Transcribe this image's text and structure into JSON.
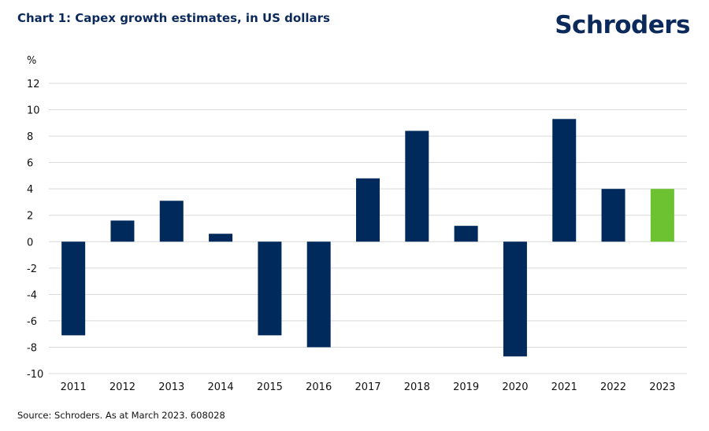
{
  "header": {
    "title": "Chart 1: Capex growth estimates, in US dollars",
    "logo_text": "Schroders"
  },
  "footer": {
    "source": "Source: Schroders. As at March 2023. 608028"
  },
  "colors": {
    "bar": "#002a5c",
    "highlight": "#6cc230",
    "brand": "#0b2a5b"
  },
  "chart_data": {
    "type": "bar",
    "title": "Chart 1: Capex growth estimates, in US dollars",
    "xlabel": "",
    "ylabel": "%",
    "ylim": [
      -10,
      12
    ],
    "yticks": [
      12,
      10,
      8,
      6,
      4,
      2,
      0,
      -2,
      -4,
      -6,
      -8,
      -10
    ],
    "grid": true,
    "categories": [
      "2011",
      "2012",
      "2013",
      "2014",
      "2015",
      "2016",
      "2017",
      "2018",
      "2019",
      "2020",
      "2021",
      "2022",
      "2023"
    ],
    "values": [
      -7.1,
      1.6,
      3.1,
      0.6,
      -7.1,
      -8.0,
      4.8,
      8.4,
      1.2,
      -8.7,
      9.3,
      4.0,
      4.0
    ],
    "highlight_index": 12
  }
}
